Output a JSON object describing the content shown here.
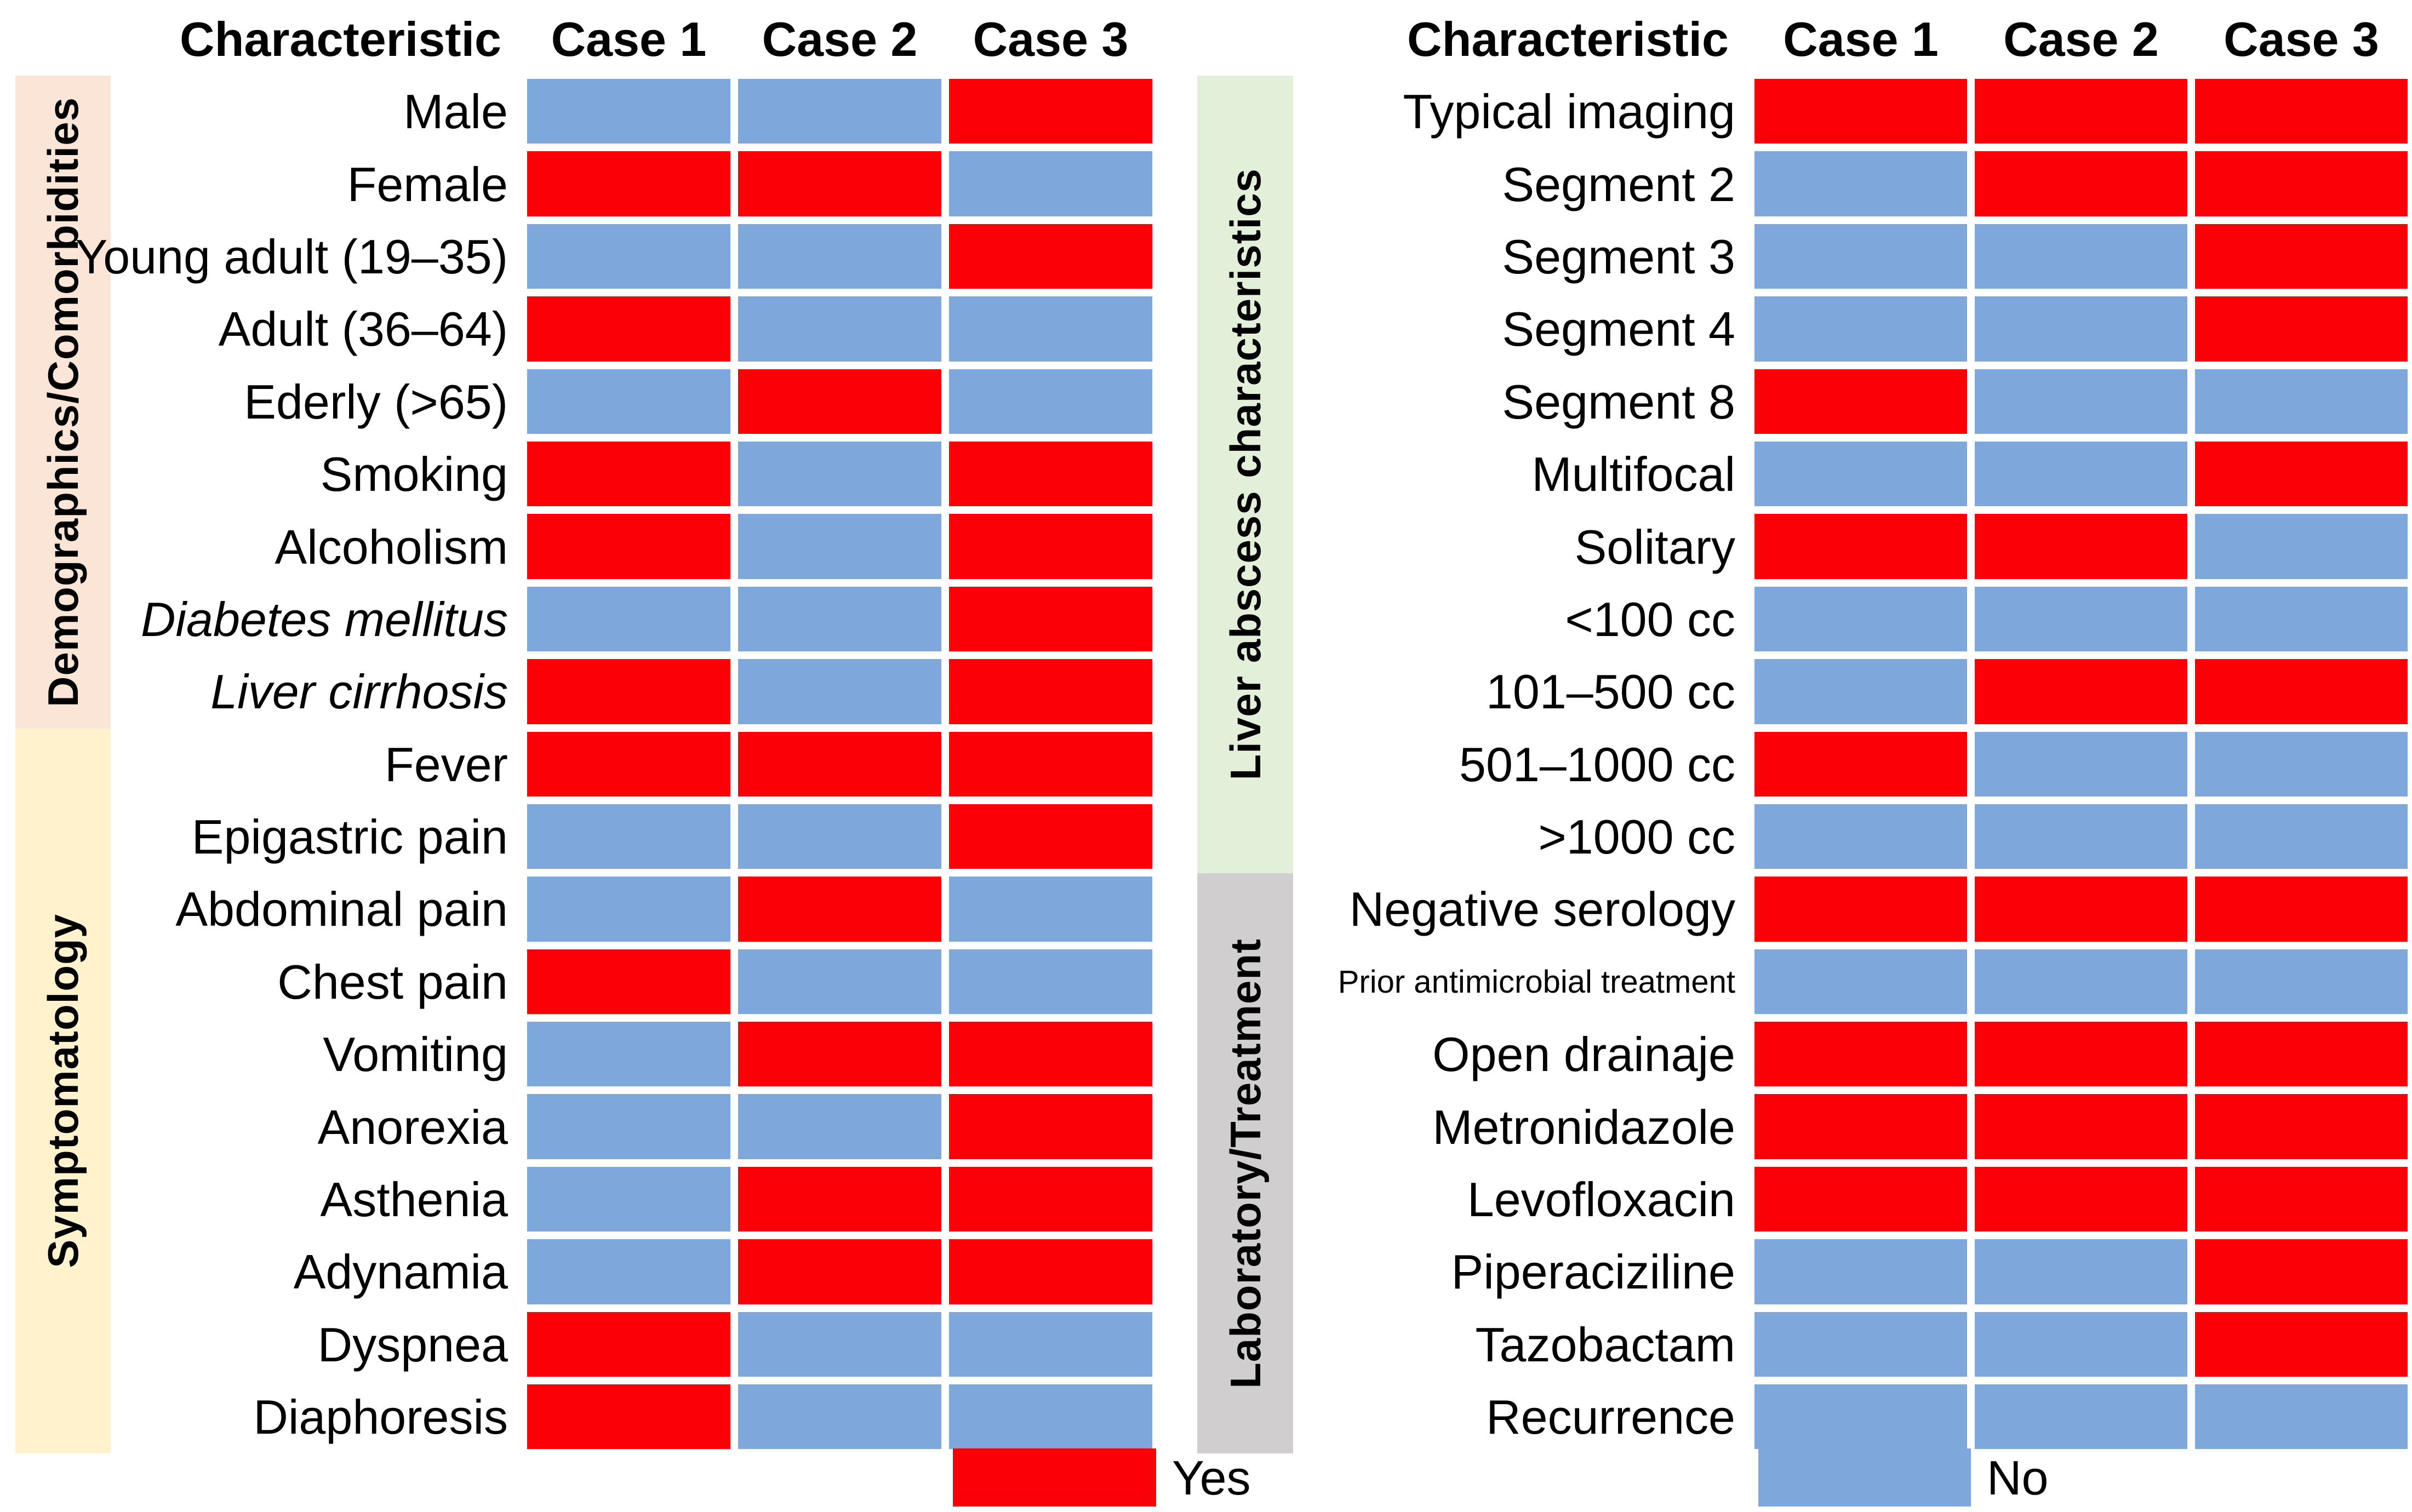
{
  "colors": {
    "yes": "#FB0006",
    "no": "#7EA7DC",
    "band_demographics": "#FBE5D6",
    "band_symptomatology": "#FFF2CC",
    "band_liver": "#E2EFD9",
    "band_laboratory": "#D0CECE",
    "text": "#000000",
    "background": "#FFFFFF"
  },
  "legend": {
    "yes_label": "Yes",
    "no_label": "No"
  },
  "chart_data": [
    {
      "type": "heatmap",
      "panel": "left",
      "col_header": "Characteristic",
      "columns": [
        "Case 1",
        "Case 2",
        "Case 3"
      ],
      "value_encoding": {
        "yes_color_meaning": "Yes",
        "no_color_meaning": "No"
      },
      "row_groups": [
        {
          "label": "Demographics/Comorbidities",
          "rows": 9
        },
        {
          "label": "Symptomatology",
          "rows": 10
        }
      ],
      "rows": [
        {
          "label": "Male",
          "italic": false,
          "small": false,
          "values": [
            "No",
            "No",
            "Yes"
          ]
        },
        {
          "label": "Female",
          "italic": false,
          "small": false,
          "values": [
            "Yes",
            "Yes",
            "No"
          ]
        },
        {
          "label": "Young adult (19–35)",
          "italic": false,
          "small": false,
          "values": [
            "No",
            "No",
            "Yes"
          ]
        },
        {
          "label": "Adult (36–64)",
          "italic": false,
          "small": false,
          "values": [
            "Yes",
            "No",
            "No"
          ]
        },
        {
          "label": "Ederly (>65)",
          "italic": false,
          "small": false,
          "values": [
            "No",
            "Yes",
            "No"
          ]
        },
        {
          "label": "Smoking",
          "italic": false,
          "small": false,
          "values": [
            "Yes",
            "No",
            "Yes"
          ]
        },
        {
          "label": "Alcoholism",
          "italic": false,
          "small": false,
          "values": [
            "Yes",
            "No",
            "Yes"
          ]
        },
        {
          "label": "Diabetes mellitus",
          "italic": true,
          "small": false,
          "values": [
            "No",
            "No",
            "Yes"
          ]
        },
        {
          "label": "Liver cirrhosis",
          "italic": true,
          "small": false,
          "values": [
            "Yes",
            "No",
            "Yes"
          ]
        },
        {
          "label": "Fever",
          "italic": false,
          "small": false,
          "values": [
            "Yes",
            "Yes",
            "Yes"
          ]
        },
        {
          "label": "Epigastric pain",
          "italic": false,
          "small": false,
          "values": [
            "No",
            "No",
            "Yes"
          ]
        },
        {
          "label": "Abdominal pain",
          "italic": false,
          "small": false,
          "values": [
            "No",
            "Yes",
            "No"
          ]
        },
        {
          "label": "Chest pain",
          "italic": false,
          "small": false,
          "values": [
            "Yes",
            "No",
            "No"
          ]
        },
        {
          "label": "Vomiting",
          "italic": false,
          "small": false,
          "values": [
            "No",
            "Yes",
            "Yes"
          ]
        },
        {
          "label": "Anorexia",
          "italic": false,
          "small": false,
          "values": [
            "No",
            "No",
            "Yes"
          ]
        },
        {
          "label": "Asthenia",
          "italic": false,
          "small": false,
          "values": [
            "No",
            "Yes",
            "Yes"
          ]
        },
        {
          "label": "Adynamia",
          "italic": false,
          "small": false,
          "values": [
            "No",
            "Yes",
            "Yes"
          ]
        },
        {
          "label": "Dyspnea",
          "italic": false,
          "small": false,
          "values": [
            "Yes",
            "No",
            "No"
          ]
        },
        {
          "label": "Diaphoresis",
          "italic": false,
          "small": false,
          "values": [
            "Yes",
            "No",
            "No"
          ]
        }
      ],
      "legend": {
        "swatch": "Yes",
        "label": "Yes"
      }
    },
    {
      "type": "heatmap",
      "panel": "right",
      "col_header": "Characteristic",
      "columns": [
        "Case 1",
        "Case 2",
        "Case 3"
      ],
      "value_encoding": {
        "yes_color_meaning": "Yes",
        "no_color_meaning": "No"
      },
      "row_groups": [
        {
          "label": "Liver abscess characteristics",
          "rows": 11
        },
        {
          "label": "Laboratory/Treatment",
          "rows": 8
        }
      ],
      "rows": [
        {
          "label": "Typical imaging",
          "italic": false,
          "small": false,
          "values": [
            "Yes",
            "Yes",
            "Yes"
          ]
        },
        {
          "label": "Segment 2",
          "italic": false,
          "small": false,
          "values": [
            "No",
            "Yes",
            "Yes"
          ]
        },
        {
          "label": "Segment 3",
          "italic": false,
          "small": false,
          "values": [
            "No",
            "No",
            "Yes"
          ]
        },
        {
          "label": "Segment 4",
          "italic": false,
          "small": false,
          "values": [
            "No",
            "No",
            "Yes"
          ]
        },
        {
          "label": "Segment 8",
          "italic": false,
          "small": false,
          "values": [
            "Yes",
            "No",
            "No"
          ]
        },
        {
          "label": "Multifocal",
          "italic": false,
          "small": false,
          "values": [
            "No",
            "No",
            "Yes"
          ]
        },
        {
          "label": "Solitary",
          "italic": false,
          "small": false,
          "values": [
            "Yes",
            "Yes",
            "No"
          ]
        },
        {
          "label": "<100 cc",
          "italic": false,
          "small": false,
          "values": [
            "No",
            "No",
            "No"
          ]
        },
        {
          "label": "101–500 cc",
          "italic": false,
          "small": false,
          "values": [
            "No",
            "Yes",
            "Yes"
          ]
        },
        {
          "label": "501–1000 cc",
          "italic": false,
          "small": false,
          "values": [
            "Yes",
            "No",
            "No"
          ]
        },
        {
          "label": ">1000 cc",
          "italic": false,
          "small": false,
          "values": [
            "No",
            "No",
            "No"
          ]
        },
        {
          "label": "Negative serology",
          "italic": false,
          "small": false,
          "values": [
            "Yes",
            "Yes",
            "Yes"
          ]
        },
        {
          "label": "Prior antimicrobial treatment",
          "italic": false,
          "small": true,
          "values": [
            "No",
            "No",
            "No"
          ]
        },
        {
          "label": "Open drainaje",
          "italic": false,
          "small": false,
          "values": [
            "Yes",
            "Yes",
            "Yes"
          ]
        },
        {
          "label": "Metronidazole",
          "italic": false,
          "small": false,
          "values": [
            "Yes",
            "Yes",
            "Yes"
          ]
        },
        {
          "label": "Levofloxacin",
          "italic": false,
          "small": false,
          "values": [
            "Yes",
            "Yes",
            "Yes"
          ]
        },
        {
          "label": "Piperaciziline",
          "italic": false,
          "small": false,
          "values": [
            "No",
            "No",
            "Yes"
          ]
        },
        {
          "label": "Tazobactam",
          "italic": false,
          "small": false,
          "values": [
            "No",
            "No",
            "Yes"
          ]
        },
        {
          "label": "Recurrence",
          "italic": false,
          "small": false,
          "values": [
            "No",
            "No",
            "No"
          ]
        }
      ],
      "legend": {
        "swatch": "No",
        "label": "No"
      }
    }
  ]
}
